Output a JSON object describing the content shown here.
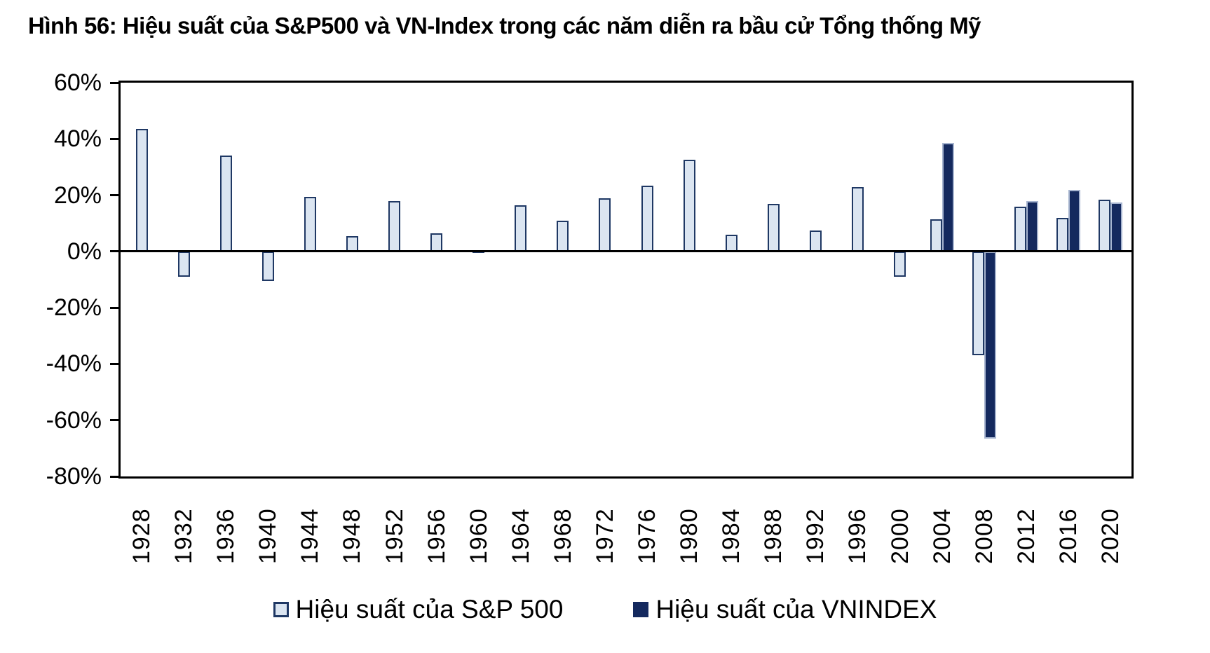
{
  "title": "Hình 56: Hiệu suất của S&P500 và VN-Index trong các năm diễn ra bầu cử Tổng thống Mỹ",
  "chart_data": {
    "type": "bar",
    "categories": [
      "1928",
      "1932",
      "1936",
      "1940",
      "1944",
      "1948",
      "1952",
      "1956",
      "1960",
      "1964",
      "1968",
      "1972",
      "1976",
      "1980",
      "1984",
      "1988",
      "1992",
      "1996",
      "2000",
      "2004",
      "2008",
      "2012",
      "2016",
      "2020"
    ],
    "series": [
      {
        "name": "Hiệu suất của S&P 500",
        "color": "#DBE5F1",
        "border_color": "#1F3864",
        "values": [
          43.5,
          -9,
          34,
          -10.5,
          19.5,
          5.5,
          18,
          6.5,
          0.5,
          16.5,
          11,
          19,
          23.5,
          32.5,
          6,
          17,
          7.5,
          23,
          -9,
          11.5,
          -37,
          16,
          12,
          18.5
        ]
      },
      {
        "name": "Hiệu suất của VNINDEX",
        "color": "#14295E",
        "border_color": "#A6B4CF",
        "values": [
          null,
          null,
          null,
          null,
          null,
          null,
          null,
          null,
          null,
          null,
          null,
          null,
          null,
          null,
          null,
          null,
          null,
          null,
          null,
          38.5,
          -66.5,
          18,
          22,
          17.5
        ]
      }
    ],
    "title": "Hình 56: Hiệu suất của S&P500 và VN-Index trong các năm diễn ra bầu cử Tổng thống Mỹ",
    "xlabel": "",
    "ylabel": "",
    "ylim": [
      -80,
      60
    ],
    "ytick_step": 20,
    "ytick_labels": [
      "60%",
      "40%",
      "20%",
      "0%",
      "-20%",
      "-40%",
      "-60%",
      "-80%"
    ],
    "grid": false,
    "legend_position": "bottom"
  }
}
